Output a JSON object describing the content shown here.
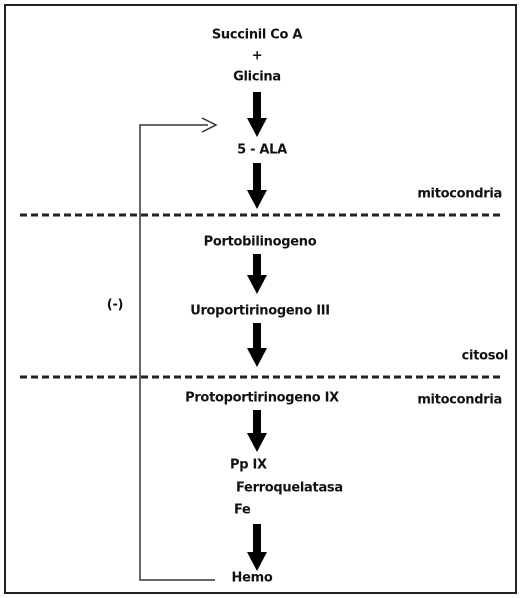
{
  "nodes": [
    {
      "label": "Succinil Co A"
    },
    {
      "label": "+"
    },
    {
      "label": "Glicina"
    },
    {
      "label": "5 - ALA"
    },
    {
      "label": "Portobilinogeno"
    },
    {
      "label": "Uroportirinogeno III"
    },
    {
      "label": "Protoportirinogeno IX"
    },
    {
      "label": "Pp IX"
    },
    {
      "label": "Ferroquelatasa"
    },
    {
      "label": "Fe"
    },
    {
      "label": "Hemo"
    }
  ],
  "compartments": [
    {
      "label": "mitocondria"
    },
    {
      "label": "citosol"
    },
    {
      "label": "mitocondria"
    }
  ],
  "feedback": {
    "label": "(-)"
  }
}
